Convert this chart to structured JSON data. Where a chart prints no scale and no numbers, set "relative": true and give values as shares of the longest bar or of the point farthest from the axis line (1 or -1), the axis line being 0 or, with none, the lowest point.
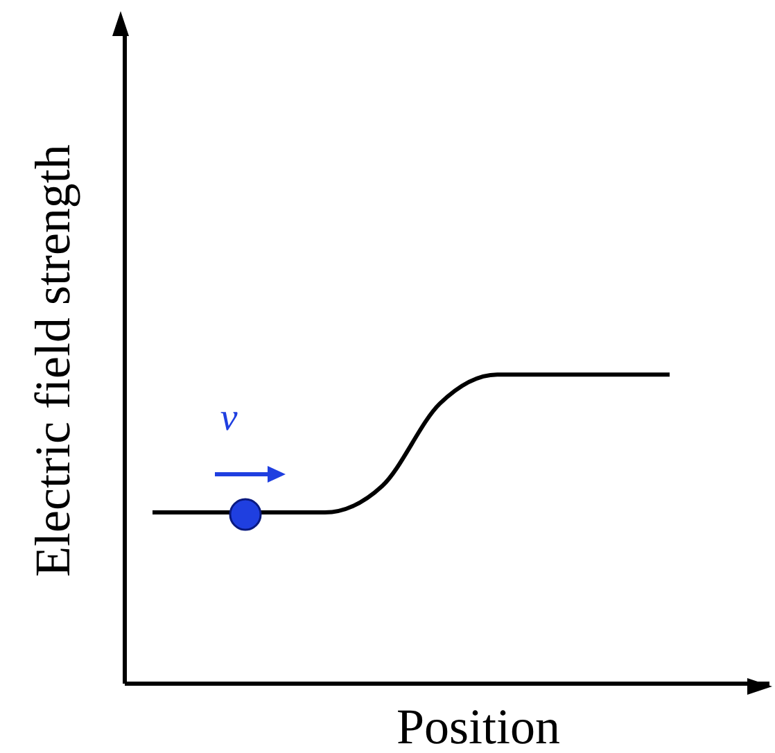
{
  "chart_data": {
    "type": "line",
    "relative": true,
    "xlabel": "Position",
    "ylabel": "Electric field strength",
    "annotations": [
      "v⃗"
    ],
    "categories": [
      null,
      null,
      null,
      null,
      null,
      null,
      null,
      null,
      null,
      null
    ],
    "series": [
      {
        "color": "#000000",
        "values": [
          0.554,
          0.554,
          0.554,
          0.554,
          0.64,
          0.906,
          1,
          1,
          1,
          1
        ]
      }
    ]
  }
}
